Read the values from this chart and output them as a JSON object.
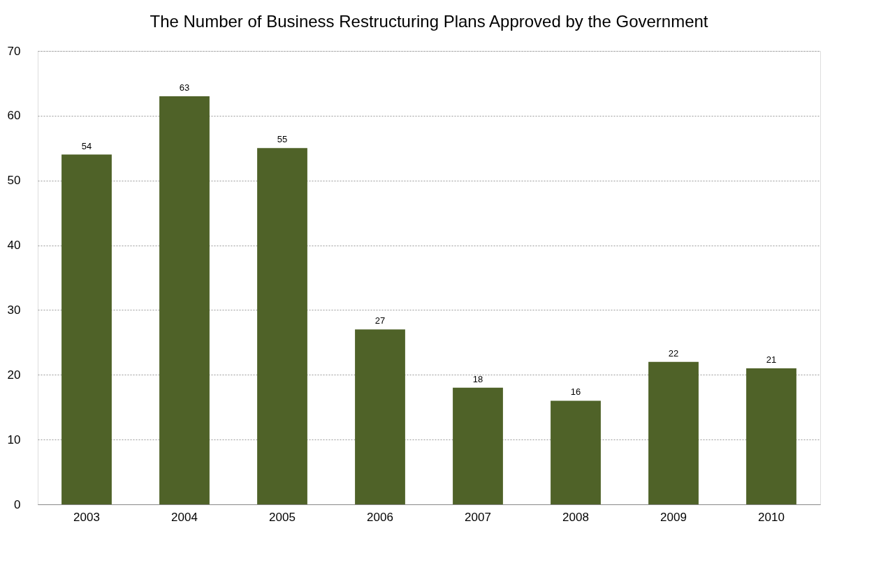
{
  "chart_data": {
    "type": "bar",
    "title": "The Number of Business Restructuring Plans Approved by the Government",
    "categories": [
      "2003",
      "2004",
      "2005",
      "2006",
      "2007",
      "2008",
      "2009",
      "2010"
    ],
    "values": [
      54,
      63,
      55,
      27,
      18,
      16,
      22,
      21
    ],
    "color": "#4f6228",
    "ylim": [
      0,
      70
    ],
    "yticks": [
      0,
      10,
      20,
      30,
      40,
      50,
      60,
      70
    ],
    "grid": "y",
    "data_labels": true
  }
}
